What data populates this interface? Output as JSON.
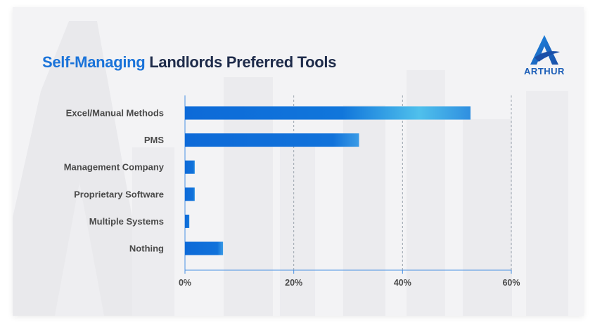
{
  "title": {
    "accent": "Self-Managing",
    "rest": "Landlords Preferred Tools"
  },
  "logo": {
    "text": "ARTHUR",
    "icon": "arthur-a-logo-icon"
  },
  "colors": {
    "title_accent": "#1a73d9",
    "title_rest": "#1e2b4a",
    "bar_dark": "#0d6ad8",
    "bar_light": "#4fc0ec",
    "axis": "#4a90e2",
    "grid": "#9aa3ad"
  },
  "chart_data": {
    "type": "bar",
    "orientation": "horizontal",
    "categories": [
      "Excel/Manual Methods",
      "PMS",
      "Management Company",
      "Proprietary Software",
      "Multiple Systems",
      "Nothing"
    ],
    "values": [
      52.5,
      32,
      1.8,
      1.8,
      0.8,
      7
    ],
    "xlim": [
      0,
      60
    ],
    "xticks": [
      "0%",
      "20%",
      "40%",
      "60%"
    ],
    "xtick_values": [
      0,
      20,
      40,
      60
    ],
    "grid": "vertical dashed",
    "xlabel": "",
    "ylabel": ""
  }
}
